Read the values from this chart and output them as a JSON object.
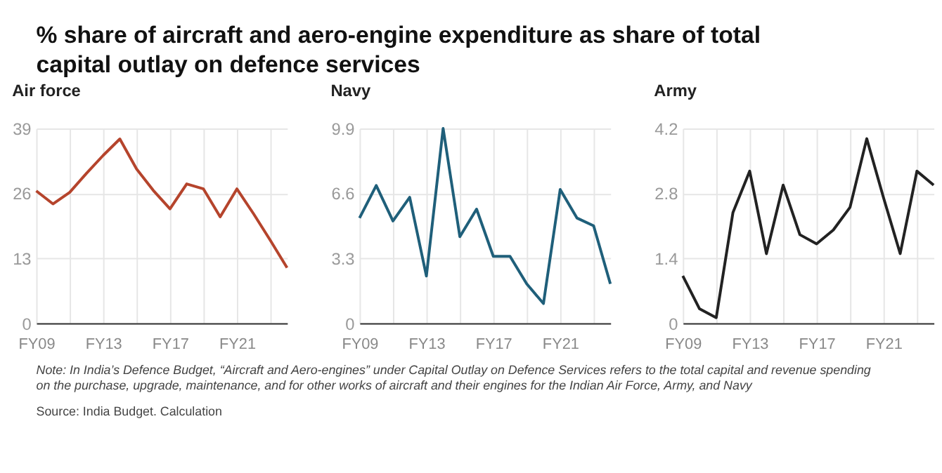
{
  "chart_data": [
    {
      "type": "line",
      "title": "Air force",
      "annotations": [
        "% share of aircraft and aero-engine expenditure as share of total capital outlay on defence services"
      ],
      "categories": [
        "FY09",
        null,
        null,
        null,
        "FY13",
        null,
        null,
        null,
        "FY17",
        null,
        null,
        null,
        "FY21",
        null,
        null,
        null
      ],
      "series": [
        {
          "color": "#b5442c",
          "values": [
            26.5,
            23.9,
            26.2,
            30.0,
            33.6,
            36.9,
            30.9,
            26.6,
            22.9,
            27.9,
            26.9,
            21.3,
            26.9,
            21.9,
            16.6,
            11.1
          ]
        }
      ],
      "ylim": [
        0,
        39
      ],
      "yticks": [
        0,
        13,
        26,
        39
      ],
      "grid": true
    },
    {
      "type": "line",
      "title": "Navy",
      "categories": [
        "FY09",
        null,
        null,
        null,
        "FY13",
        null,
        null,
        null,
        "FY17",
        null,
        null,
        null,
        "FY21",
        null,
        null,
        null
      ],
      "series": [
        {
          "color": "#1f5f7a",
          "values": [
            5.35,
            7.0,
            5.2,
            6.4,
            2.4,
            9.9,
            4.4,
            5.8,
            3.4,
            3.4,
            2.0,
            1.0,
            6.8,
            5.35,
            4.95,
            2.0
          ]
        }
      ],
      "ylim": [
        0,
        9.9
      ],
      "yticks": [
        0,
        3.3,
        6.6,
        9.9
      ],
      "grid": true
    },
    {
      "type": "line",
      "title": "Army",
      "annotations": [
        "Note: In India’s Defence Budget, “Aircraft and Aero-engines” under Capital Outlay on Defence Services refers to the total capital and revenue spending on the purchase, upgrade, maintenance, and for other works of aircraft and their engines for the Indian Air Force, Army, and Navy",
        "Source: India Budget. Calculation"
      ],
      "categories": [
        "FY09",
        null,
        null,
        null,
        "FY13",
        null,
        null,
        null,
        "FY17",
        null,
        null,
        null,
        "FY21",
        null,
        null,
        null
      ],
      "series": [
        {
          "color": "#222222",
          "values": [
            1.02,
            0.31,
            0.12,
            2.39,
            3.28,
            1.5,
            2.98,
            1.91,
            1.71,
            2.01,
            2.5,
            3.98,
            2.71,
            1.5,
            3.28,
            2.98
          ]
        }
      ],
      "ylim": [
        0,
        4.2
      ],
      "yticks": [
        0,
        1.4,
        2.8,
        4.2
      ],
      "grid": true
    }
  ]
}
